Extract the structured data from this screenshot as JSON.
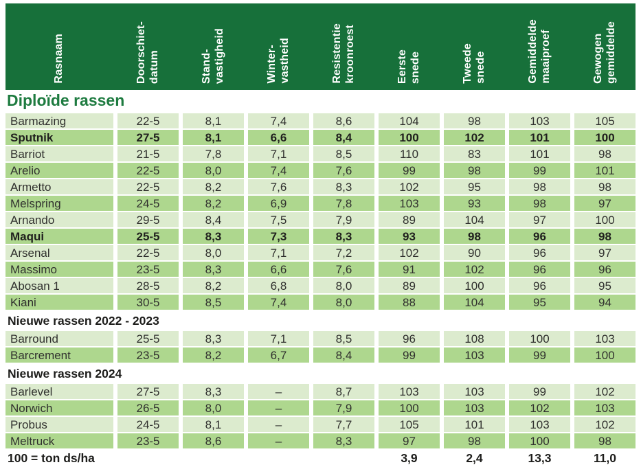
{
  "colors": {
    "header_bg": "#17703a",
    "header_text": "#ffffff",
    "title_green": "#1e7b40",
    "row_light": "#dcebce",
    "row_dark": "#aed78e",
    "text": "#30302e"
  },
  "table": {
    "columns": [
      {
        "id": "rasnaam",
        "lines": [
          "Rasnaam"
        ]
      },
      {
        "id": "doorschietdatum",
        "lines": [
          "Doorschiet-",
          "datum"
        ]
      },
      {
        "id": "standvastigheid",
        "lines": [
          "Stand-",
          "vastigheid"
        ]
      },
      {
        "id": "wintervastheid",
        "lines": [
          "Winter-",
          "vastheid"
        ]
      },
      {
        "id": "resistentie-kroonroest",
        "lines": [
          "Resistentie",
          "kroonroest"
        ]
      },
      {
        "id": "eerste-snede",
        "lines": [
          "Eerste",
          "snede"
        ]
      },
      {
        "id": "tweede-snede",
        "lines": [
          "Tweede",
          "snede"
        ]
      },
      {
        "id": "gemiddelde-maaiproef",
        "lines": [
          "Gemiddelde",
          "maaiproef"
        ]
      },
      {
        "id": "gewogen-gemiddelde",
        "lines": [
          "Gewogen",
          "gemiddelde"
        ]
      }
    ],
    "sections": [
      {
        "title": "Diploïde rassen",
        "title_style": "green",
        "rows": [
          {
            "name": "Barmazing",
            "bold": false,
            "values": [
              "22-5",
              "8,1",
              "7,4",
              "8,6",
              "104",
              "98",
              "103",
              "105"
            ]
          },
          {
            "name": "Sputnik",
            "bold": true,
            "values": [
              "27-5",
              "8,1",
              "6,6",
              "8,4",
              "100",
              "102",
              "101",
              "100"
            ]
          },
          {
            "name": "Barriot",
            "bold": false,
            "values": [
              "21-5",
              "7,8",
              "7,1",
              "8,5",
              "110",
              "83",
              "101",
              "98"
            ]
          },
          {
            "name": "Arelio",
            "bold": false,
            "values": [
              "22-5",
              "8,0",
              "7,4",
              "7,6",
              "99",
              "98",
              "99",
              "101"
            ]
          },
          {
            "name": "Armetto",
            "bold": false,
            "values": [
              "22-5",
              "8,2",
              "7,6",
              "8,3",
              "102",
              "95",
              "98",
              "98"
            ]
          },
          {
            "name": "Melspring",
            "bold": false,
            "values": [
              "24-5",
              "8,2",
              "6,9",
              "7,8",
              "103",
              "93",
              "98",
              "97"
            ]
          },
          {
            "name": "Arnando",
            "bold": false,
            "values": [
              "29-5",
              "8,4",
              "7,5",
              "7,9",
              "89",
              "104",
              "97",
              "100"
            ]
          },
          {
            "name": "Maqui",
            "bold": true,
            "values": [
              "25-5",
              "8,3",
              "7,3",
              "8,3",
              "93",
              "98",
              "96",
              "98"
            ]
          },
          {
            "name": "Arsenal",
            "bold": false,
            "values": [
              "22-5",
              "8,0",
              "7,1",
              "7,2",
              "102",
              "90",
              "96",
              "97"
            ]
          },
          {
            "name": "Massimo",
            "bold": false,
            "values": [
              "23-5",
              "8,3",
              "6,6",
              "7,6",
              "91",
              "102",
              "96",
              "96"
            ]
          },
          {
            "name": "Abosan 1",
            "bold": false,
            "values": [
              "28-5",
              "8,2",
              "6,8",
              "8,0",
              "89",
              "100",
              "96",
              "95"
            ]
          },
          {
            "name": "Kiani",
            "bold": false,
            "values": [
              "30-5",
              "8,5",
              "7,4",
              "8,0",
              "88",
              "104",
              "95",
              "94"
            ]
          }
        ]
      },
      {
        "title": "Nieuwe rassen 2022 - 2023",
        "title_style": "dark",
        "rows": [
          {
            "name": "Barround",
            "bold": false,
            "values": [
              "25-5",
              "8,3",
              "7,1",
              "8,5",
              "96",
              "108",
              "100",
              "103"
            ]
          },
          {
            "name": "Barcrement",
            "bold": false,
            "values": [
              "23-5",
              "8,2",
              "6,7",
              "8,4",
              "99",
              "103",
              "99",
              "100"
            ]
          }
        ]
      },
      {
        "title": "Nieuwe rassen 2024",
        "title_style": "dark",
        "rows": [
          {
            "name": "Barlevel",
            "bold": false,
            "values": [
              "27-5",
              "8,3",
              "–",
              "8,7",
              "103",
              "103",
              "99",
              "102"
            ]
          },
          {
            "name": "Norwich",
            "bold": false,
            "values": [
              "26-5",
              "8,0",
              "–",
              "7,9",
              "100",
              "103",
              "102",
              "103"
            ]
          },
          {
            "name": "Probus",
            "bold": false,
            "values": [
              "24-5",
              "8,1",
              "–",
              "7,7",
              "105",
              "101",
              "103",
              "102"
            ]
          },
          {
            "name": "Meltruck",
            "bold": false,
            "values": [
              "23-5",
              "8,6",
              "–",
              "8,3",
              "97",
              "98",
              "100",
              "98"
            ]
          }
        ]
      }
    ],
    "footer": {
      "cells": [
        "100 = ton ds/ha",
        "",
        "",
        "",
        "",
        "3,9",
        "2,4",
        "13,3",
        "11,0"
      ]
    }
  }
}
